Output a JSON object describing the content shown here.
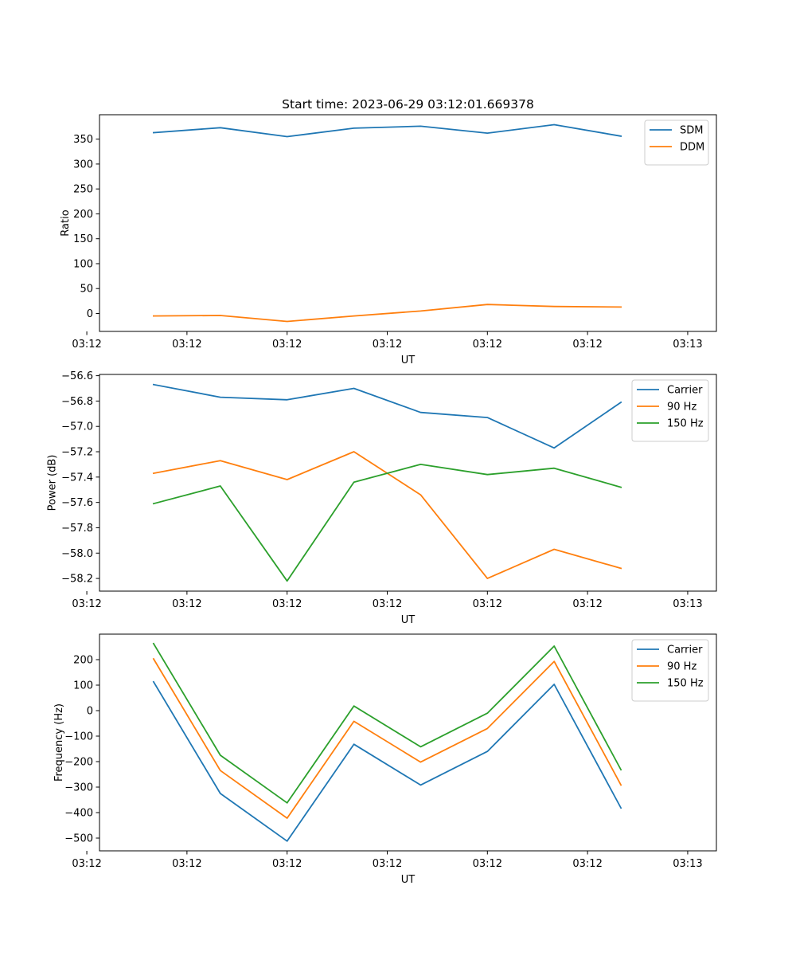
{
  "figure": {
    "title": "Start time: 2023-06-29 03:12:01.669378"
  },
  "colors": {
    "blue": "#1f77b4",
    "orange": "#ff7f0e",
    "green": "#2ca02c"
  },
  "chart_data": [
    {
      "type": "line",
      "title": "Start time: 2023-06-29 03:12:01.669378",
      "xlabel": "UT",
      "ylabel": "Ratio",
      "x": [
        1,
        2,
        3,
        4,
        5,
        6,
        7,
        8
      ],
      "xlim": [
        0.19,
        9.43
      ],
      "x_ticks": [
        0,
        1.5,
        3,
        4.5,
        6,
        7.5,
        9
      ],
      "x_tick_labels": [
        "03:12",
        "03:12",
        "03:12",
        "03:12",
        "03:12",
        "03:12",
        "03:13"
      ],
      "ylim": [
        -36,
        399
      ],
      "y_ticks": [
        0,
        50,
        100,
        150,
        200,
        250,
        300,
        350
      ],
      "y_tick_labels": [
        "0",
        "50",
        "100",
        "150",
        "200",
        "250",
        "300",
        "350"
      ],
      "legend": "top-right",
      "grid": false,
      "series": [
        {
          "name": "SDM",
          "color": "#1f77b4",
          "values": [
            363,
            373,
            355,
            372,
            376,
            362,
            379,
            356
          ]
        },
        {
          "name": "DDM",
          "color": "#ff7f0e",
          "values": [
            -5,
            -4,
            -16,
            -5,
            5,
            18,
            14,
            13
          ]
        }
      ]
    },
    {
      "type": "line",
      "xlabel": "UT",
      "ylabel": "Power (dB)",
      "x": [
        1,
        2,
        3,
        4,
        5,
        6,
        7,
        8
      ],
      "xlim": [
        0.19,
        9.43
      ],
      "x_ticks": [
        0,
        1.5,
        3,
        4.5,
        6,
        7.5,
        9
      ],
      "x_tick_labels": [
        "03:12",
        "03:12",
        "03:12",
        "03:12",
        "03:12",
        "03:12",
        "03:13"
      ],
      "ylim": [
        -58.3,
        -56.59
      ],
      "y_ticks": [
        -58.2,
        -58.0,
        -57.8,
        -57.6,
        -57.4,
        -57.2,
        -57.0,
        -56.8,
        -56.6
      ],
      "y_tick_labels": [
        "−58.2",
        "−58.0",
        "−57.8",
        "−57.6",
        "−57.4",
        "−57.2",
        "−57.0",
        "−56.8",
        "−56.6"
      ],
      "legend": "top-right",
      "grid": false,
      "series": [
        {
          "name": "Carrier",
          "color": "#1f77b4",
          "values": [
            -56.67,
            -56.77,
            -56.79,
            -56.7,
            -56.89,
            -56.93,
            -57.17,
            -56.81
          ]
        },
        {
          "name": "90 Hz",
          "color": "#ff7f0e",
          "values": [
            -57.37,
            -57.27,
            -57.42,
            -57.2,
            -57.54,
            -58.2,
            -57.97,
            -58.12
          ]
        },
        {
          "name": "150 Hz",
          "color": "#2ca02c",
          "values": [
            -57.61,
            -57.47,
            -58.22,
            -57.44,
            -57.3,
            -57.38,
            -57.33,
            -57.48
          ]
        }
      ]
    },
    {
      "type": "line",
      "xlabel": "UT",
      "ylabel": "Frequency (Hz)",
      "x": [
        1,
        2,
        3,
        4,
        5,
        6,
        7,
        8
      ],
      "xlim": [
        0.19,
        9.43
      ],
      "x_ticks": [
        0,
        1.5,
        3,
        4.5,
        6,
        7.5,
        9
      ],
      "x_tick_labels": [
        "03:12",
        "03:12",
        "03:12",
        "03:12",
        "03:12",
        "03:12",
        "03:13"
      ],
      "ylim": [
        -550,
        300
      ],
      "y_ticks": [
        -500,
        -400,
        -300,
        -200,
        -100,
        0,
        100,
        200
      ],
      "y_tick_labels": [
        "−500",
        "−400",
        "−300",
        "−200",
        "−100",
        "0",
        "100",
        "200"
      ],
      "legend": "top-right",
      "grid": false,
      "series": [
        {
          "name": "Carrier",
          "color": "#1f77b4",
          "values": [
            113,
            -325,
            -512,
            -132,
            -292,
            -160,
            103,
            -382
          ]
        },
        {
          "name": "90 Hz",
          "color": "#ff7f0e",
          "values": [
            203,
            -235,
            -422,
            -42,
            -202,
            -70,
            193,
            -292
          ]
        },
        {
          "name": "150 Hz",
          "color": "#2ca02c",
          "values": [
            263,
            -175,
            -362,
            18,
            -142,
            -10,
            253,
            -232
          ]
        }
      ]
    }
  ]
}
